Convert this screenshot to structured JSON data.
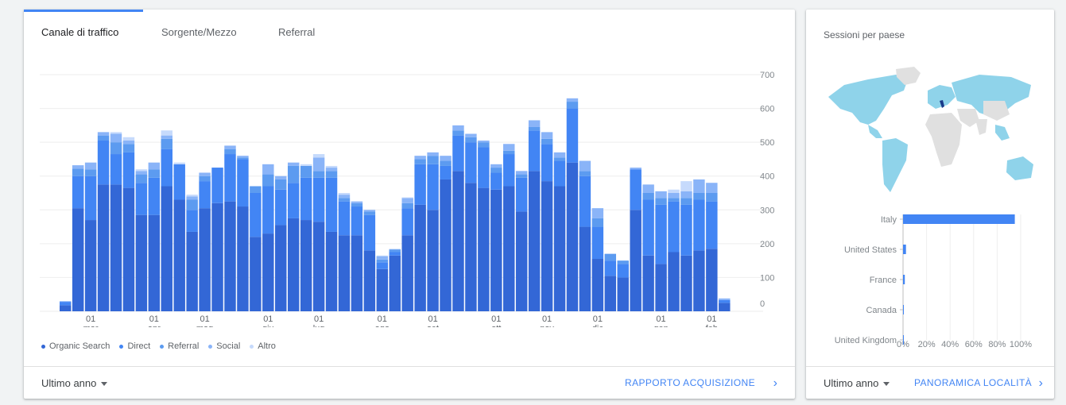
{
  "tabs": [
    {
      "label": "Canale di traffico",
      "active": true
    },
    {
      "label": "Sorgente/Mezzo",
      "active": false
    },
    {
      "label": "Referral",
      "active": false
    }
  ],
  "left_footer": {
    "range": "Ultimo anno",
    "link": "RAPPORTO ACQUISIZIONE"
  },
  "right_panel": {
    "title": "Sessioni per paese",
    "range": "Ultimo anno",
    "link": "PANORAMICA LOCALITÀ"
  },
  "chart_data": [
    {
      "type": "bar",
      "stacked": true,
      "ylim": [
        0,
        700
      ],
      "yticks": [
        0,
        100,
        200,
        300,
        400,
        500,
        600,
        700
      ],
      "xtick_labels": [
        {
          "day": "01",
          "month": "mar",
          "index": 2
        },
        {
          "day": "01",
          "month": "apr",
          "index": 7
        },
        {
          "day": "01",
          "month": "mag",
          "index": 11
        },
        {
          "day": "01",
          "month": "giu",
          "index": 16
        },
        {
          "day": "01",
          "month": "lug",
          "index": 20
        },
        {
          "day": "01",
          "month": "ago",
          "index": 25
        },
        {
          "day": "01",
          "month": "set",
          "index": 29
        },
        {
          "day": "01",
          "month": "ott",
          "index": 34
        },
        {
          "day": "01",
          "month": "nov",
          "index": 38
        },
        {
          "day": "01",
          "month": "dic",
          "index": 42
        },
        {
          "day": "01",
          "month": "gen",
          "index": 47
        },
        {
          "day": "01",
          "month": "feb",
          "index": 51
        }
      ],
      "series": [
        {
          "name": "Organic Search",
          "color": "#3367d6",
          "values": [
            18,
            305,
            270,
            375,
            375,
            365,
            285,
            285,
            370,
            330,
            235,
            305,
            320,
            325,
            310,
            220,
            230,
            255,
            275,
            270,
            265,
            235,
            225,
            225,
            180,
            125,
            165,
            225,
            315,
            300,
            390,
            415,
            380,
            365,
            360,
            370,
            295,
            415,
            385,
            370,
            440,
            250,
            155,
            105,
            100,
            300,
            165,
            140,
            175,
            165,
            180,
            185,
            25
          ]
        },
        {
          "name": "Direct",
          "color": "#4285f4",
          "values": [
            10,
            95,
            130,
            130,
            90,
            105,
            95,
            110,
            110,
            105,
            65,
            80,
            105,
            140,
            140,
            130,
            140,
            105,
            105,
            125,
            130,
            160,
            100,
            85,
            105,
            20,
            10,
            80,
            120,
            135,
            40,
            105,
            120,
            120,
            50,
            95,
            100,
            120,
            110,
            75,
            160,
            150,
            95,
            45,
            40,
            120,
            165,
            175,
            150,
            150,
            150,
            140,
            8
          ]
        },
        {
          "name": "Referral",
          "color": "#5c9bf0",
          "values": [
            0,
            22,
            20,
            15,
            35,
            25,
            25,
            25,
            30,
            0,
            30,
            15,
            0,
            15,
            5,
            20,
            35,
            30,
            50,
            35,
            20,
            20,
            10,
            10,
            10,
            8,
            8,
            15,
            15,
            25,
            15,
            15,
            15,
            15,
            15,
            10,
            10,
            10,
            15,
            10,
            20,
            15,
            25,
            20,
            10,
            0,
            20,
            20,
            10,
            20,
            20,
            25,
            0
          ]
        },
        {
          "name": "Social",
          "color": "#8ab4f8",
          "values": [
            2,
            10,
            20,
            10,
            25,
            10,
            10,
            20,
            10,
            0,
            10,
            10,
            0,
            10,
            5,
            0,
            30,
            10,
            10,
            0,
            40,
            10,
            10,
            5,
            5,
            10,
            0,
            15,
            10,
            10,
            15,
            15,
            10,
            5,
            10,
            20,
            10,
            20,
            20,
            15,
            10,
            30,
            30,
            0,
            0,
            5,
            25,
            20,
            15,
            20,
            40,
            30,
            5
          ]
        },
        {
          "name": "Altro",
          "color": "#c6dafc",
          "values": [
            0,
            0,
            0,
            0,
            5,
            10,
            5,
            0,
            15,
            5,
            5,
            0,
            0,
            0,
            0,
            0,
            0,
            0,
            0,
            5,
            10,
            5,
            5,
            0,
            0,
            2,
            2,
            2,
            0,
            0,
            0,
            0,
            0,
            0,
            0,
            0,
            0,
            0,
            0,
            0,
            0,
            0,
            0,
            0,
            0,
            0,
            0,
            0,
            10,
            30,
            0,
            0,
            0
          ]
        }
      ]
    },
    {
      "type": "bar",
      "orientation": "horizontal",
      "categories": [
        "Italy",
        "United States",
        "France",
        "Canada",
        "United Kingdom"
      ],
      "values": [
        95,
        2.5,
        1.5,
        0.3,
        0.2
      ],
      "xlim": [
        0,
        100
      ],
      "xtick_labels": [
        "0%",
        "20%",
        "40%",
        "60%",
        "80%",
        "100%"
      ],
      "color": "#4285f4"
    }
  ]
}
